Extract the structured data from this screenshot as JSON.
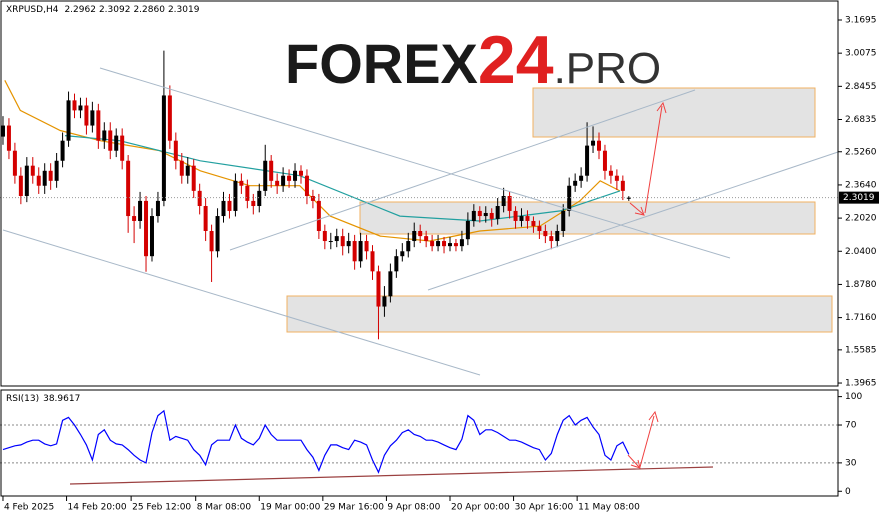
{
  "chart_data": [
    {
      "type": "candlestick",
      "title": "XRPUSD,H4",
      "ohlc_labels": [
        "2.2962",
        "2.3092",
        "2.2860",
        "2.3019"
      ],
      "logo": [
        "FOREX",
        "24",
        ".PRO"
      ],
      "x": [
        0,
        1,
        2,
        3,
        4,
        5,
        6,
        7,
        8,
        9,
        10,
        11,
        12,
        13,
        14,
        15,
        16,
        17,
        18,
        19,
        20,
        21,
        22,
        23,
        24,
        25,
        26,
        27,
        28,
        29,
        30,
        31,
        32,
        33,
        34,
        35,
        36,
        37,
        38,
        39,
        40,
        41,
        42,
        43,
        44,
        45,
        46,
        47,
        48,
        49,
        50,
        51,
        52,
        53,
        54,
        55,
        56,
        57,
        58,
        59,
        60,
        61,
        62,
        63,
        64,
        65,
        66,
        67,
        68,
        69,
        70,
        71,
        72,
        73,
        74,
        75,
        76,
        77,
        78,
        79,
        80,
        81,
        82,
        83,
        84,
        85,
        86,
        87,
        88,
        89,
        90,
        91,
        92,
        93,
        94,
        95,
        96,
        97,
        98,
        99,
        100,
        101,
        102,
        103,
        104,
        105
      ],
      "open": [
        2.6,
        2.654,
        2.531,
        2.409,
        2.31,
        2.458,
        2.409,
        2.36,
        2.433,
        2.384,
        2.482,
        2.58,
        2.777,
        2.728,
        2.752,
        2.654,
        2.728,
        2.58,
        2.63,
        2.531,
        2.605,
        2.482,
        2.212,
        2.188,
        2.286,
        2.016,
        2.212,
        2.286,
        2.801,
        2.58,
        2.482,
        2.409,
        2.458,
        2.335,
        2.261,
        2.139,
        2.04,
        2.212,
        2.286,
        2.237,
        2.384,
        2.36,
        2.286,
        2.261,
        2.335,
        2.482,
        2.384,
        2.36,
        2.409,
        2.384,
        2.433,
        2.409,
        2.31,
        2.286,
        2.139,
        2.09,
        2.09,
        2.114,
        2.065,
        2.09,
        1.991,
        2.09,
        2.04,
        1.942,
        1.77,
        1.82,
        1.942,
        2.016,
        2.04,
        2.09,
        2.139,
        2.114,
        2.09,
        2.065,
        2.09,
        2.065,
        2.08,
        2.065,
        2.099,
        2.188,
        2.237,
        2.212,
        2.227,
        2.198,
        2.261,
        2.31,
        2.237,
        2.188,
        2.212,
        2.188,
        2.163,
        2.139,
        2.114,
        2.09,
        2.139,
        2.237,
        2.36,
        2.384,
        2.409,
        2.556,
        2.58,
        2.531,
        2.433,
        2.409,
        2.384,
        2.2962
      ],
      "high": [
        2.7,
        2.69,
        2.57,
        2.45,
        2.5,
        2.5,
        2.45,
        2.47,
        2.47,
        2.52,
        2.62,
        2.82,
        2.81,
        2.79,
        2.79,
        2.77,
        2.76,
        2.67,
        2.67,
        2.64,
        2.64,
        2.51,
        2.26,
        2.33,
        2.31,
        2.25,
        2.33,
        3.02,
        2.85,
        2.62,
        2.52,
        2.5,
        2.49,
        2.37,
        2.3,
        2.17,
        2.25,
        2.33,
        2.32,
        2.42,
        2.42,
        2.39,
        2.32,
        2.37,
        2.56,
        2.51,
        2.42,
        2.45,
        2.44,
        2.47,
        2.46,
        2.44,
        2.34,
        2.32,
        2.17,
        2.13,
        2.15,
        2.15,
        2.13,
        2.12,
        2.13,
        2.12,
        2.07,
        1.97,
        1.87,
        1.98,
        2.05,
        2.08,
        2.13,
        2.18,
        2.17,
        2.14,
        2.12,
        2.12,
        2.11,
        2.11,
        2.1,
        2.14,
        2.23,
        2.27,
        2.26,
        2.26,
        2.25,
        2.3,
        2.35,
        2.33,
        2.26,
        2.25,
        2.24,
        2.21,
        2.19,
        2.17,
        2.14,
        2.17,
        2.27,
        2.4,
        2.42,
        2.45,
        2.67,
        2.65,
        2.62,
        2.56,
        2.46,
        2.44,
        2.41,
        2.3092
      ],
      "low": [
        2.56,
        2.49,
        2.37,
        2.27,
        2.28,
        2.37,
        2.32,
        2.32,
        2.34,
        2.35,
        2.45,
        2.55,
        2.69,
        2.69,
        2.61,
        2.62,
        2.54,
        2.54,
        2.49,
        2.5,
        2.44,
        2.13,
        2.08,
        2.15,
        1.94,
        1.99,
        2.18,
        2.26,
        2.54,
        2.44,
        2.37,
        2.37,
        2.3,
        2.22,
        2.09,
        1.89,
        2.01,
        2.18,
        2.2,
        2.21,
        2.32,
        2.25,
        2.22,
        2.23,
        2.31,
        2.35,
        2.32,
        2.33,
        2.35,
        2.35,
        2.37,
        2.27,
        2.25,
        2.1,
        2.05,
        2.05,
        2.06,
        2.02,
        2.03,
        1.95,
        1.96,
        2.0,
        1.9,
        1.61,
        1.72,
        1.79,
        1.91,
        1.99,
        2.01,
        2.06,
        2.08,
        2.06,
        2.04,
        2.04,
        2.03,
        2.04,
        2.04,
        2.04,
        2.07,
        2.16,
        2.18,
        2.18,
        2.16,
        2.17,
        2.23,
        2.2,
        2.15,
        2.16,
        2.15,
        2.13,
        2.1,
        2.08,
        2.05,
        2.06,
        2.11,
        2.21,
        2.33,
        2.35,
        2.38,
        2.52,
        2.49,
        2.39,
        2.37,
        2.34,
        2.29,
        2.286
      ],
      "close": [
        2.654,
        2.531,
        2.409,
        2.31,
        2.458,
        2.409,
        2.36,
        2.433,
        2.384,
        2.482,
        2.58,
        2.777,
        2.728,
        2.752,
        2.654,
        2.728,
        2.58,
        2.63,
        2.531,
        2.605,
        2.482,
        2.212,
        2.188,
        2.286,
        2.016,
        2.212,
        2.286,
        2.801,
        2.58,
        2.482,
        2.409,
        2.458,
        2.335,
        2.261,
        2.139,
        2.04,
        2.212,
        2.286,
        2.237,
        2.384,
        2.36,
        2.286,
        2.261,
        2.335,
        2.482,
        2.384,
        2.36,
        2.409,
        2.384,
        2.433,
        2.409,
        2.31,
        2.286,
        2.139,
        2.09,
        2.09,
        2.114,
        2.065,
        2.09,
        1.991,
        2.09,
        2.04,
        1.942,
        1.77,
        1.82,
        1.942,
        2.016,
        2.04,
        2.09,
        2.139,
        2.114,
        2.09,
        2.065,
        2.09,
        2.065,
        2.08,
        2.065,
        2.099,
        2.188,
        2.237,
        2.212,
        2.227,
        2.198,
        2.261,
        2.31,
        2.237,
        2.188,
        2.212,
        2.188,
        2.163,
        2.139,
        2.114,
        2.09,
        2.139,
        2.237,
        2.36,
        2.384,
        2.409,
        2.556,
        2.58,
        2.531,
        2.433,
        2.409,
        2.384,
        2.335,
        2.3019
      ],
      "colors": {
        "up": "#000000",
        "down": "#d40000"
      },
      "overlays": [
        {
          "color": "#e59400",
          "x": [
            0.3,
            2.9,
            9.6,
            16.3,
            26.3,
            33.1,
            41.4,
            49.8,
            54.9,
            63.3,
            71.6,
            80,
            90.1,
            96.8,
            100.2,
            103.5
          ],
          "values": [
            2.875,
            2.728,
            2.63,
            2.58,
            2.531,
            2.433,
            2.36,
            2.36,
            2.212,
            2.114,
            2.09,
            2.139,
            2.163,
            2.286,
            2.384,
            2.335
          ]
        },
        {
          "color": "#22a0a0",
          "x": [
            10.4,
            19.6,
            33.1,
            49.8,
            66.6,
            80,
            93.5,
            103.5
          ],
          "values": [
            2.605,
            2.58,
            2.482,
            2.409,
            2.212,
            2.188,
            2.237,
            2.335
          ]
        }
      ],
      "xlim": [
        -0.5,
        140.1
      ],
      "ylim": [
        1.382,
        3.2525
      ],
      "yticks": [
        3.1695,
        3.0075,
        2.8455,
        2.6835,
        {
          "value": 2.526,
          "label": "2.5260"
        },
        {
          "value": 2.364,
          "label": "2.3640"
        },
        {
          "value": 2.202,
          "label": "2.2020"
        },
        {
          "value": 2.04,
          "label": "2.0400"
        },
        {
          "value": 1.878,
          "label": "1.8780"
        },
        {
          "value": 1.716,
          "label": "1.7160"
        },
        1.5585,
        1.3965
      ]
    },
    {
      "type": "line",
      "title": "RSI(13)",
      "color": "#0000ff",
      "x": [
        0,
        1,
        2,
        3,
        4,
        5,
        6,
        7,
        8,
        9,
        10,
        11,
        12,
        13,
        14,
        15,
        16,
        17,
        18,
        19,
        20,
        21,
        22,
        23,
        24,
        25,
        26,
        27,
        28,
        29,
        30,
        31,
        32,
        33,
        34,
        35,
        36,
        37,
        38,
        39,
        40,
        41,
        42,
        43,
        44,
        45,
        46,
        47,
        48,
        49,
        50,
        51,
        52,
        53,
        54,
        55,
        56,
        57,
        58,
        59,
        60,
        61,
        62,
        63,
        64,
        65,
        66,
        67,
        68,
        69,
        70,
        71,
        72,
        73,
        74,
        75,
        76,
        77,
        78,
        79,
        80,
        81,
        82,
        83,
        84,
        85,
        86,
        87,
        88,
        89,
        90,
        91,
        92,
        93,
        94,
        95,
        96,
        97,
        98,
        99,
        100,
        101,
        102,
        103,
        104,
        105
      ],
      "values": [
        44,
        46,
        48,
        49,
        52,
        54,
        54,
        50,
        48,
        50,
        75,
        78,
        70,
        60,
        49,
        33,
        60,
        65,
        54,
        50,
        49,
        44,
        38,
        33,
        30,
        62,
        80,
        85,
        54,
        58,
        56,
        54,
        44,
        38,
        28,
        49,
        54,
        54,
        54,
        70,
        56,
        52,
        49,
        56,
        70,
        60,
        54,
        54,
        54,
        54,
        54,
        44,
        36,
        22,
        38,
        49,
        49,
        46,
        44,
        54,
        52,
        49,
        33,
        20,
        38,
        48,
        54,
        62,
        65,
        60,
        58,
        54,
        54,
        52,
        49,
        46,
        44,
        55,
        80,
        75,
        60,
        65,
        65,
        62,
        58,
        54,
        54,
        52,
        49,
        46,
        44,
        33,
        40,
        60,
        75,
        80,
        70,
        75,
        78,
        68,
        60,
        38,
        33,
        48,
        52,
        38.9617
      ],
      "levels": [
        30,
        70
      ],
      "xlim": [
        -0.5,
        140.1
      ],
      "ylim": [
        -5,
        107
      ],
      "yticks": [
        100,
        70,
        30,
        0
      ],
      "xticks": [
        {
          "value": 0,
          "label": "4 Feb 2025"
        },
        {
          "value": 10.667,
          "label": "14 Feb 20:00"
        },
        {
          "value": 21.5,
          "label": "25 Feb 12:00"
        },
        {
          "value": 32.333,
          "label": "8 Mar 08:00"
        },
        {
          "value": 43,
          "label": "19 Mar 00:00"
        },
        {
          "value": 53.667,
          "label": "29 Mar 16:00"
        },
        {
          "value": 64.333,
          "label": "9 Apr 08:00"
        },
        {
          "value": 75,
          "label": "20 Apr 00:00"
        },
        {
          "value": 85.667,
          "label": "30 Apr 16:00"
        },
        {
          "value": 96.333,
          "label": "11 May 08:00"
        }
      ]
    }
  ]
}
